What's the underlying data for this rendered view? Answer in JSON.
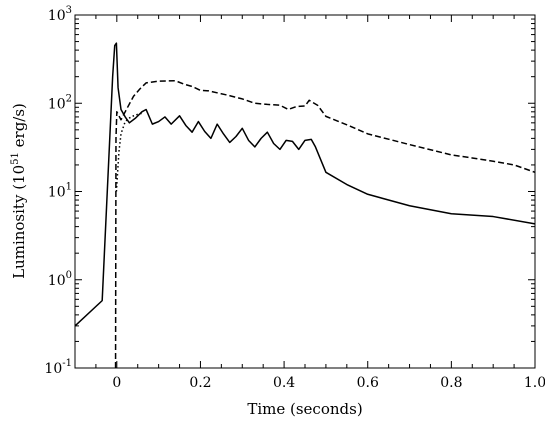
{
  "chart_data": {
    "type": "line",
    "xlabel": "Time  (seconds)",
    "ylabel": {
      "prefix": "Luminosity  (10",
      "exp": "51",
      "suffix": " erg/s)"
    },
    "xlim": [
      -0.1,
      1.0
    ],
    "ylim": [
      0.1,
      1000
    ],
    "yscale": "log",
    "grid": false,
    "legend": "none",
    "x_ticks": [
      {
        "value": 0,
        "label": "0"
      },
      {
        "value": 0.2,
        "label": "0.2"
      },
      {
        "value": 0.4,
        "label": "0.4"
      },
      {
        "value": 0.6,
        "label": "0.6"
      },
      {
        "value": 0.8,
        "label": "0.8"
      },
      {
        "value": 1.0,
        "label": "1.0"
      }
    ],
    "y_ticks": [
      {
        "value": 0.1,
        "base": "10",
        "exp": "-1"
      },
      {
        "value": 1,
        "base": "10",
        "exp": "0"
      },
      {
        "value": 10,
        "base": "10",
        "exp": "1"
      },
      {
        "value": 100,
        "base": "10",
        "exp": "2"
      },
      {
        "value": 1000,
        "base": "10",
        "exp": "3"
      }
    ],
    "series": [
      {
        "style": "solid",
        "x": [
          -0.1,
          -0.035,
          -0.01,
          -0.005,
          -0.001,
          0.003,
          0.01,
          0.02,
          0.03,
          0.045,
          0.06,
          0.07,
          0.085,
          0.1,
          0.115,
          0.13,
          0.15,
          0.165,
          0.18,
          0.195,
          0.21,
          0.225,
          0.24,
          0.255,
          0.27,
          0.285,
          0.3,
          0.315,
          0.33,
          0.345,
          0.36,
          0.375,
          0.39,
          0.405,
          0.42,
          0.435,
          0.45,
          0.465,
          0.475,
          0.5,
          0.55,
          0.6,
          0.7,
          0.8,
          0.9,
          1.0
        ],
        "y": [
          0.3,
          0.58,
          200,
          450,
          480,
          150,
          85,
          70,
          60,
          68,
          80,
          85,
          58,
          62,
          70,
          58,
          72,
          56,
          47,
          62,
          48,
          40,
          58,
          45,
          36,
          42,
          52,
          38,
          32,
          40,
          47,
          35,
          30,
          38,
          37,
          30,
          38,
          39,
          32,
          16.5,
          12,
          9.3,
          6.9,
          5.6,
          5.2,
          4.3
        ]
      },
      {
        "style": "dashed",
        "x": [
          -0.003,
          -0.002,
          0.0,
          0.01,
          0.02,
          0.04,
          0.055,
          0.07,
          0.1,
          0.14,
          0.16,
          0.18,
          0.2,
          0.22,
          0.26,
          0.3,
          0.33,
          0.36,
          0.39,
          0.41,
          0.43,
          0.45,
          0.46,
          0.48,
          0.5,
          0.55,
          0.6,
          0.7,
          0.8,
          0.85,
          0.9,
          0.95,
          1.0
        ],
        "y": [
          0.1,
          40,
          80,
          65,
          80,
          120,
          145,
          170,
          178,
          180,
          165,
          155,
          140,
          138,
          125,
          112,
          100,
          97,
          95,
          85,
          92,
          93,
          108,
          95,
          71,
          57,
          45,
          34,
          26,
          24,
          22,
          20,
          16.5
        ]
      },
      {
        "style": "dotted",
        "x": [
          -0.001,
          0.005,
          0.01,
          0.02,
          0.03,
          0.04,
          0.05,
          0.06
        ],
        "y": [
          10,
          28,
          45,
          62,
          68,
          72,
          75,
          77
        ]
      }
    ]
  }
}
